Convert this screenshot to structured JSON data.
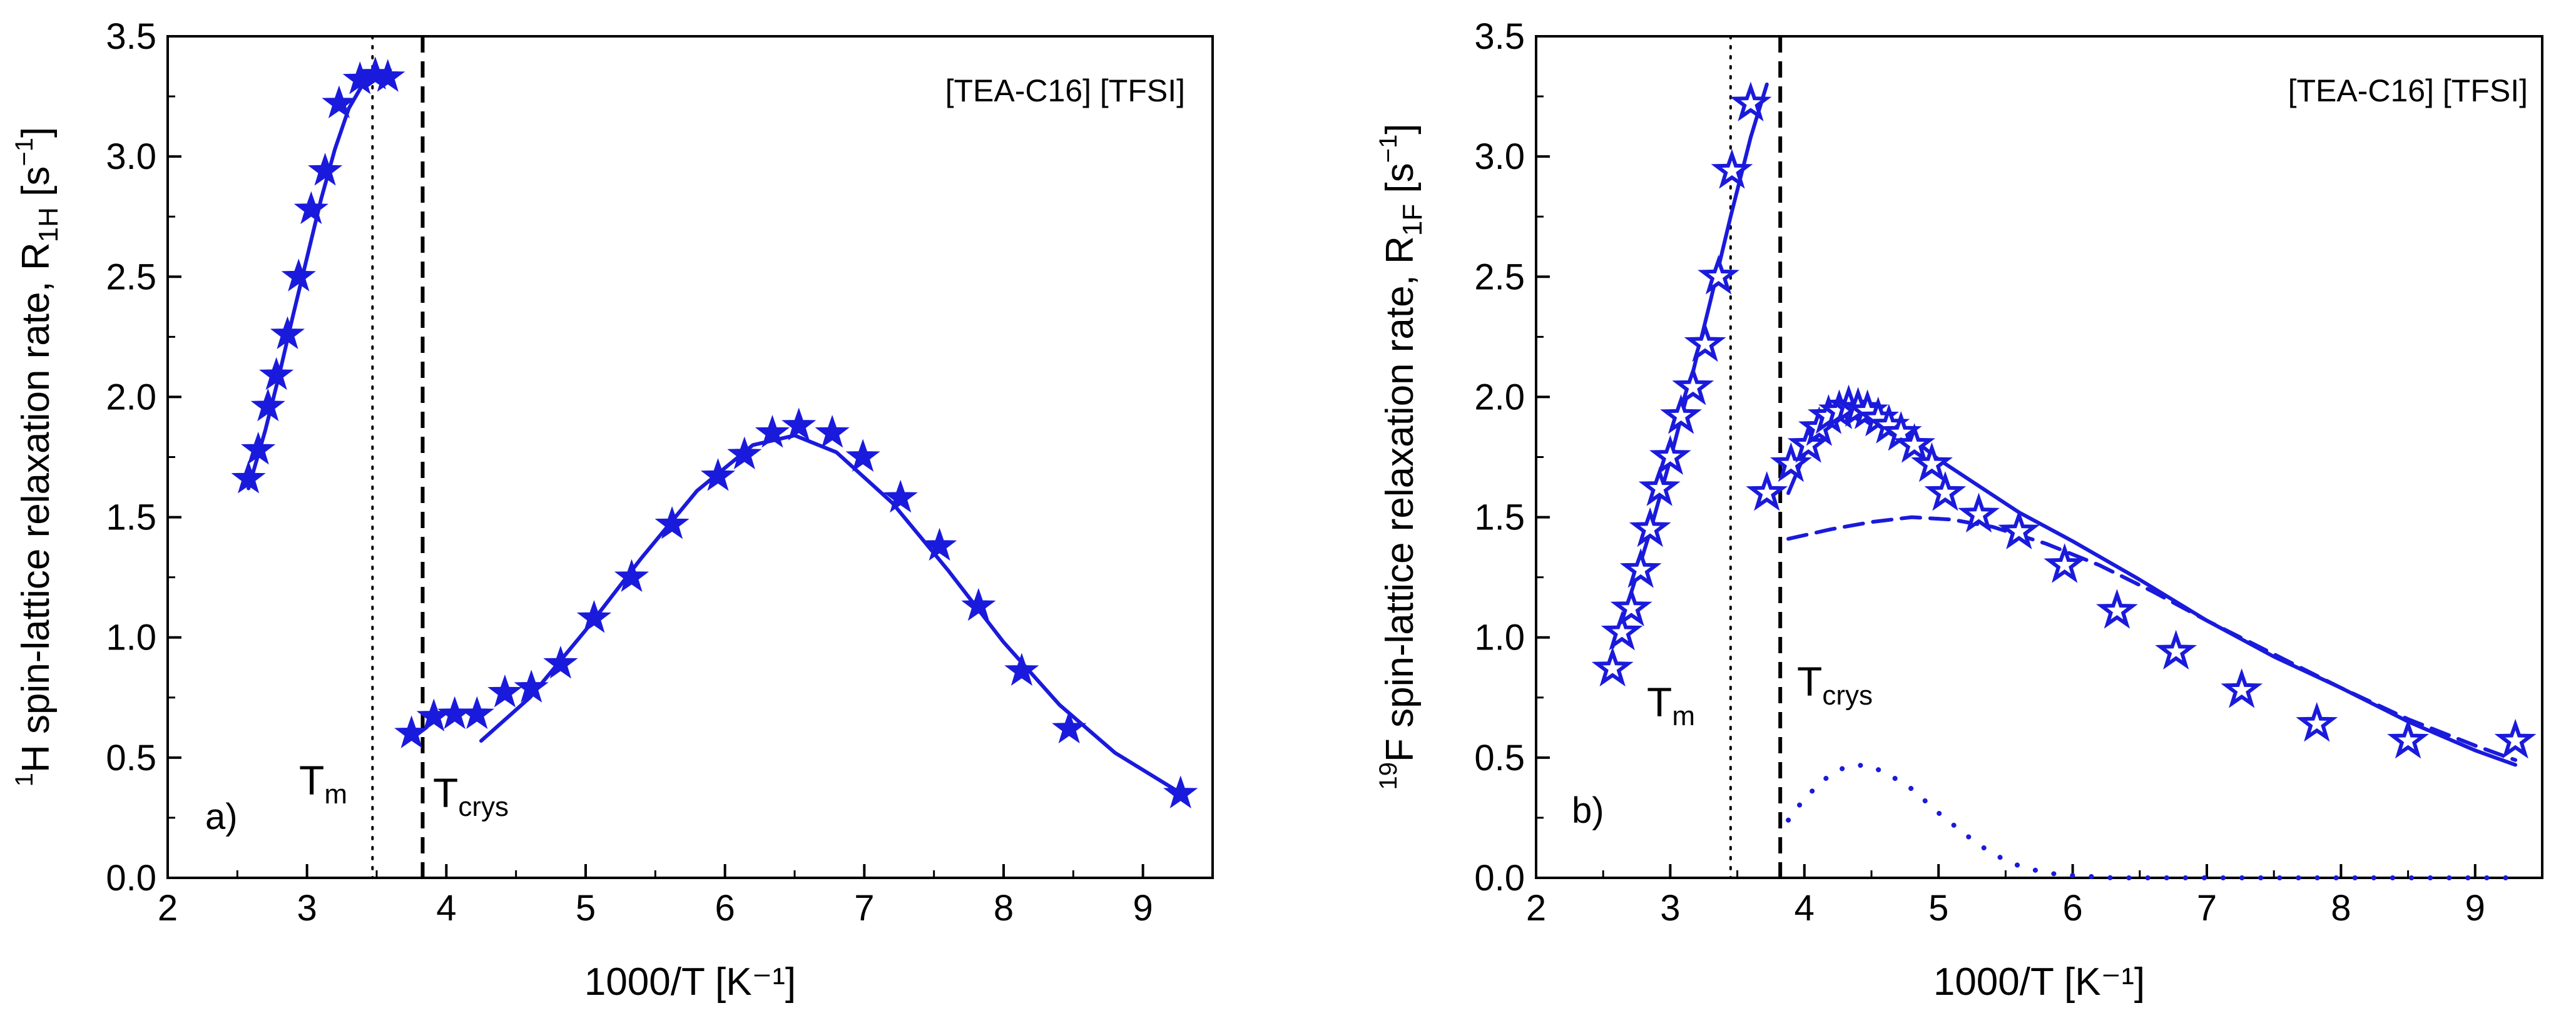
{
  "chart_data": [
    {
      "type": "scatter",
      "panel_label": "a)",
      "sample_label": "[TEA-C16] [TFSI]",
      "xlabel": "1000/T [K⁻¹]",
      "ylabel_parts": {
        "pre": "1",
        "main": "H spin-lattice relaxation rate, R",
        "sub": "1H",
        "unit_open": " [s",
        "unit_sup": "−1",
        "unit_close": "]"
      },
      "xlim": [
        2,
        9.5
      ],
      "ylim": [
        0,
        3.5
      ],
      "xticks": [
        "2",
        "3",
        "4",
        "5",
        "6",
        "7",
        "8",
        "9"
      ],
      "yticks": [
        "0.0",
        "0.5",
        "1.0",
        "1.5",
        "2.0",
        "2.5",
        "3.0",
        "3.5"
      ],
      "color": "#1a1adc",
      "vlines": [
        {
          "name": "T_m",
          "x": 3.47,
          "style": "dotted",
          "label": "T",
          "label_sub": "m"
        },
        {
          "name": "T_crys",
          "x": 3.83,
          "style": "dashed",
          "label": "T",
          "label_sub": "crys"
        }
      ],
      "series": [
        {
          "name": "data",
          "kind": "stars",
          "x": [
            2.58,
            2.65,
            2.72,
            2.78,
            2.86,
            2.94,
            3.03,
            3.13,
            3.23,
            3.38,
            3.49,
            3.58,
            3.75,
            3.91,
            4.06,
            4.22,
            4.42,
            4.61,
            4.82,
            5.06,
            5.33,
            5.62,
            5.95,
            6.14,
            6.34,
            6.53,
            6.77,
            6.99,
            7.26,
            7.54,
            7.82,
            8.13,
            8.47,
            9.27
          ],
          "y": [
            1.66,
            1.78,
            1.96,
            2.09,
            2.26,
            2.5,
            2.78,
            2.94,
            3.22,
            3.32,
            3.34,
            3.33,
            0.6,
            0.67,
            0.68,
            0.68,
            0.77,
            0.79,
            0.89,
            1.08,
            1.25,
            1.47,
            1.67,
            1.76,
            1.85,
            1.88,
            1.85,
            1.75,
            1.58,
            1.38,
            1.13,
            0.86,
            0.62,
            0.35
          ]
        },
        {
          "name": "fit-liquid",
          "kind": "solid-line",
          "x": [
            2.58,
            2.7,
            2.8,
            2.9,
            3.0,
            3.1,
            3.2,
            3.3,
            3.4,
            3.5,
            3.58
          ],
          "y": [
            1.62,
            1.86,
            2.09,
            2.34,
            2.58,
            2.82,
            3.03,
            3.2,
            3.3,
            3.34,
            3.35
          ]
        },
        {
          "name": "fit-solid",
          "kind": "solid-line",
          "x": [
            4.25,
            4.6,
            5.0,
            5.4,
            5.8,
            6.2,
            6.5,
            6.8,
            7.2,
            7.6,
            8.0,
            8.4,
            8.8,
            9.25
          ],
          "y": [
            0.57,
            0.75,
            1.03,
            1.33,
            1.61,
            1.8,
            1.84,
            1.77,
            1.56,
            1.28,
            0.98,
            0.72,
            0.52,
            0.36
          ]
        }
      ]
    },
    {
      "type": "scatter",
      "panel_label": "b)",
      "sample_label": "[TEA-C16] [TFSI]",
      "xlabel": "1000/T [K⁻¹]",
      "ylabel_parts": {
        "pre": "19",
        "main": "F spin-lattice relaxation rate, R",
        "sub": "1F",
        "unit_open": " [s",
        "unit_sup": "−1",
        "unit_close": "]"
      },
      "xlim": [
        2,
        9.5
      ],
      "ylim": [
        0,
        3.5
      ],
      "xticks": [
        "2",
        "3",
        "4",
        "5",
        "6",
        "7",
        "8",
        "9"
      ],
      "yticks": [
        "0.0",
        "0.5",
        "1.0",
        "1.5",
        "2.0",
        "2.5",
        "3.0",
        "3.5"
      ],
      "color": "#1a1adc",
      "vlines": [
        {
          "name": "T_m",
          "x": 3.45,
          "style": "dotted",
          "label": "T",
          "label_sub": "m"
        },
        {
          "name": "T_crys",
          "x": 3.82,
          "style": "dashed",
          "label": "T",
          "label_sub": "crys"
        }
      ],
      "series": [
        {
          "name": "data",
          "kind": "open-stars",
          "x": [
            2.57,
            2.64,
            2.71,
            2.78,
            2.85,
            2.92,
            3.0,
            3.08,
            3.17,
            3.26,
            3.36,
            3.46,
            3.6,
            3.72,
            3.9,
            4.03,
            4.11,
            4.18,
            4.26,
            4.33,
            4.4,
            4.47,
            4.55,
            4.63,
            4.72,
            4.82,
            4.95,
            5.05,
            5.3,
            5.6,
            5.94,
            6.33,
            6.77,
            7.26,
            7.82,
            8.5,
            9.3
          ],
          "y": [
            0.87,
            1.02,
            1.12,
            1.28,
            1.45,
            1.62,
            1.75,
            1.92,
            2.04,
            2.22,
            2.5,
            2.94,
            3.22,
            1.6,
            1.72,
            1.8,
            1.87,
            1.92,
            1.94,
            1.96,
            1.95,
            1.94,
            1.91,
            1.88,
            1.85,
            1.8,
            1.72,
            1.6,
            1.51,
            1.44,
            1.3,
            1.11,
            0.94,
            0.78,
            0.64,
            0.57,
            0.57
          ]
        },
        {
          "name": "fit-liquid",
          "kind": "solid-line",
          "x": [
            2.57,
            2.7,
            2.85,
            3.0,
            3.15,
            3.3,
            3.45,
            3.6,
            3.72
          ],
          "y": [
            0.96,
            1.17,
            1.44,
            1.74,
            2.06,
            2.4,
            2.75,
            3.08,
            3.3
          ]
        },
        {
          "name": "fit-solid-total",
          "kind": "solid-line",
          "x": [
            3.88,
            4.0,
            4.15,
            4.3,
            4.45,
            4.6,
            4.8,
            5.0,
            5.3,
            5.6,
            6.0,
            6.5,
            7.0,
            7.5,
            8.0,
            8.5,
            9.0,
            9.3
          ],
          "y": [
            1.6,
            1.76,
            1.88,
            1.95,
            1.96,
            1.92,
            1.83,
            1.74,
            1.63,
            1.52,
            1.4,
            1.24,
            1.07,
            0.92,
            0.79,
            0.65,
            0.53,
            0.47
          ]
        },
        {
          "name": "component-dashed",
          "kind": "dashed-line",
          "x": [
            3.88,
            4.2,
            4.5,
            4.8,
            5.1,
            5.4,
            5.8,
            6.2,
            6.6,
            7.0,
            7.5,
            8.0,
            8.5,
            9.0,
            9.3
          ],
          "y": [
            1.41,
            1.45,
            1.48,
            1.5,
            1.49,
            1.46,
            1.39,
            1.3,
            1.19,
            1.07,
            0.93,
            0.79,
            0.66,
            0.55,
            0.49
          ]
        },
        {
          "name": "component-dotted",
          "kind": "dotted-line",
          "x": [
            3.88,
            4.0,
            4.15,
            4.3,
            4.45,
            4.6,
            4.8,
            5.0,
            5.2,
            5.4,
            5.6,
            5.8,
            6.0,
            6.3,
            6.8,
            7.5,
            8.5,
            9.3
          ],
          "y": [
            0.24,
            0.33,
            0.41,
            0.46,
            0.47,
            0.44,
            0.37,
            0.27,
            0.18,
            0.1,
            0.05,
            0.02,
            0.01,
            0.0,
            0.0,
            0.0,
            0.0,
            0.0
          ]
        }
      ]
    }
  ]
}
